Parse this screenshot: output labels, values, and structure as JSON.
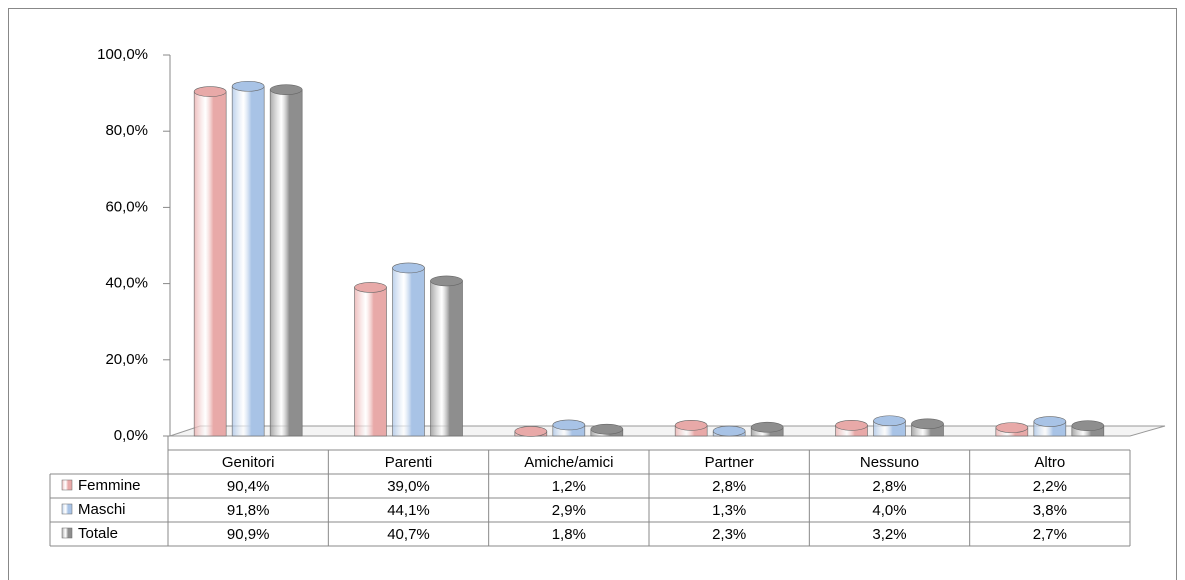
{
  "chart_data": {
    "type": "bar",
    "categories": [
      "Genitori",
      "Parenti",
      "Amiche/amici",
      "Partner",
      "Nessuno",
      "Altro"
    ],
    "series": [
      {
        "name": "Femmine",
        "color": "#e8a9a8",
        "values": [
          90.4,
          39.0,
          1.2,
          2.8,
          2.8,
          2.2
        ],
        "value_labels": [
          "90,4%",
          "39,0%",
          "1,2%",
          "2,8%",
          "2,8%",
          "2,2%"
        ]
      },
      {
        "name": "Maschi",
        "color": "#a8c3e6",
        "values": [
          91.8,
          44.1,
          2.9,
          1.3,
          4.0,
          3.8
        ],
        "value_labels": [
          "91,8%",
          "44,1%",
          "2,9%",
          "1,3%",
          "4,0%",
          "3,8%"
        ]
      },
      {
        "name": "Totale",
        "color": "#8e8e8e",
        "values": [
          90.9,
          40.7,
          1.8,
          2.3,
          3.2,
          2.7
        ],
        "value_labels": [
          "90,9%",
          "40,7%",
          "1,8%",
          "2,3%",
          "3,2%",
          "2,7%"
        ]
      }
    ],
    "ylim": [
      0,
      100
    ],
    "yticks": [
      {
        "value": 0,
        "label": "0,0%"
      },
      {
        "value": 20,
        "label": "20,0%"
      },
      {
        "value": 40,
        "label": "40,0%"
      },
      {
        "value": 60,
        "label": "60,0%"
      },
      {
        "value": 80,
        "label": "80,0%"
      },
      {
        "value": 100,
        "label": "100,0%"
      }
    ]
  }
}
